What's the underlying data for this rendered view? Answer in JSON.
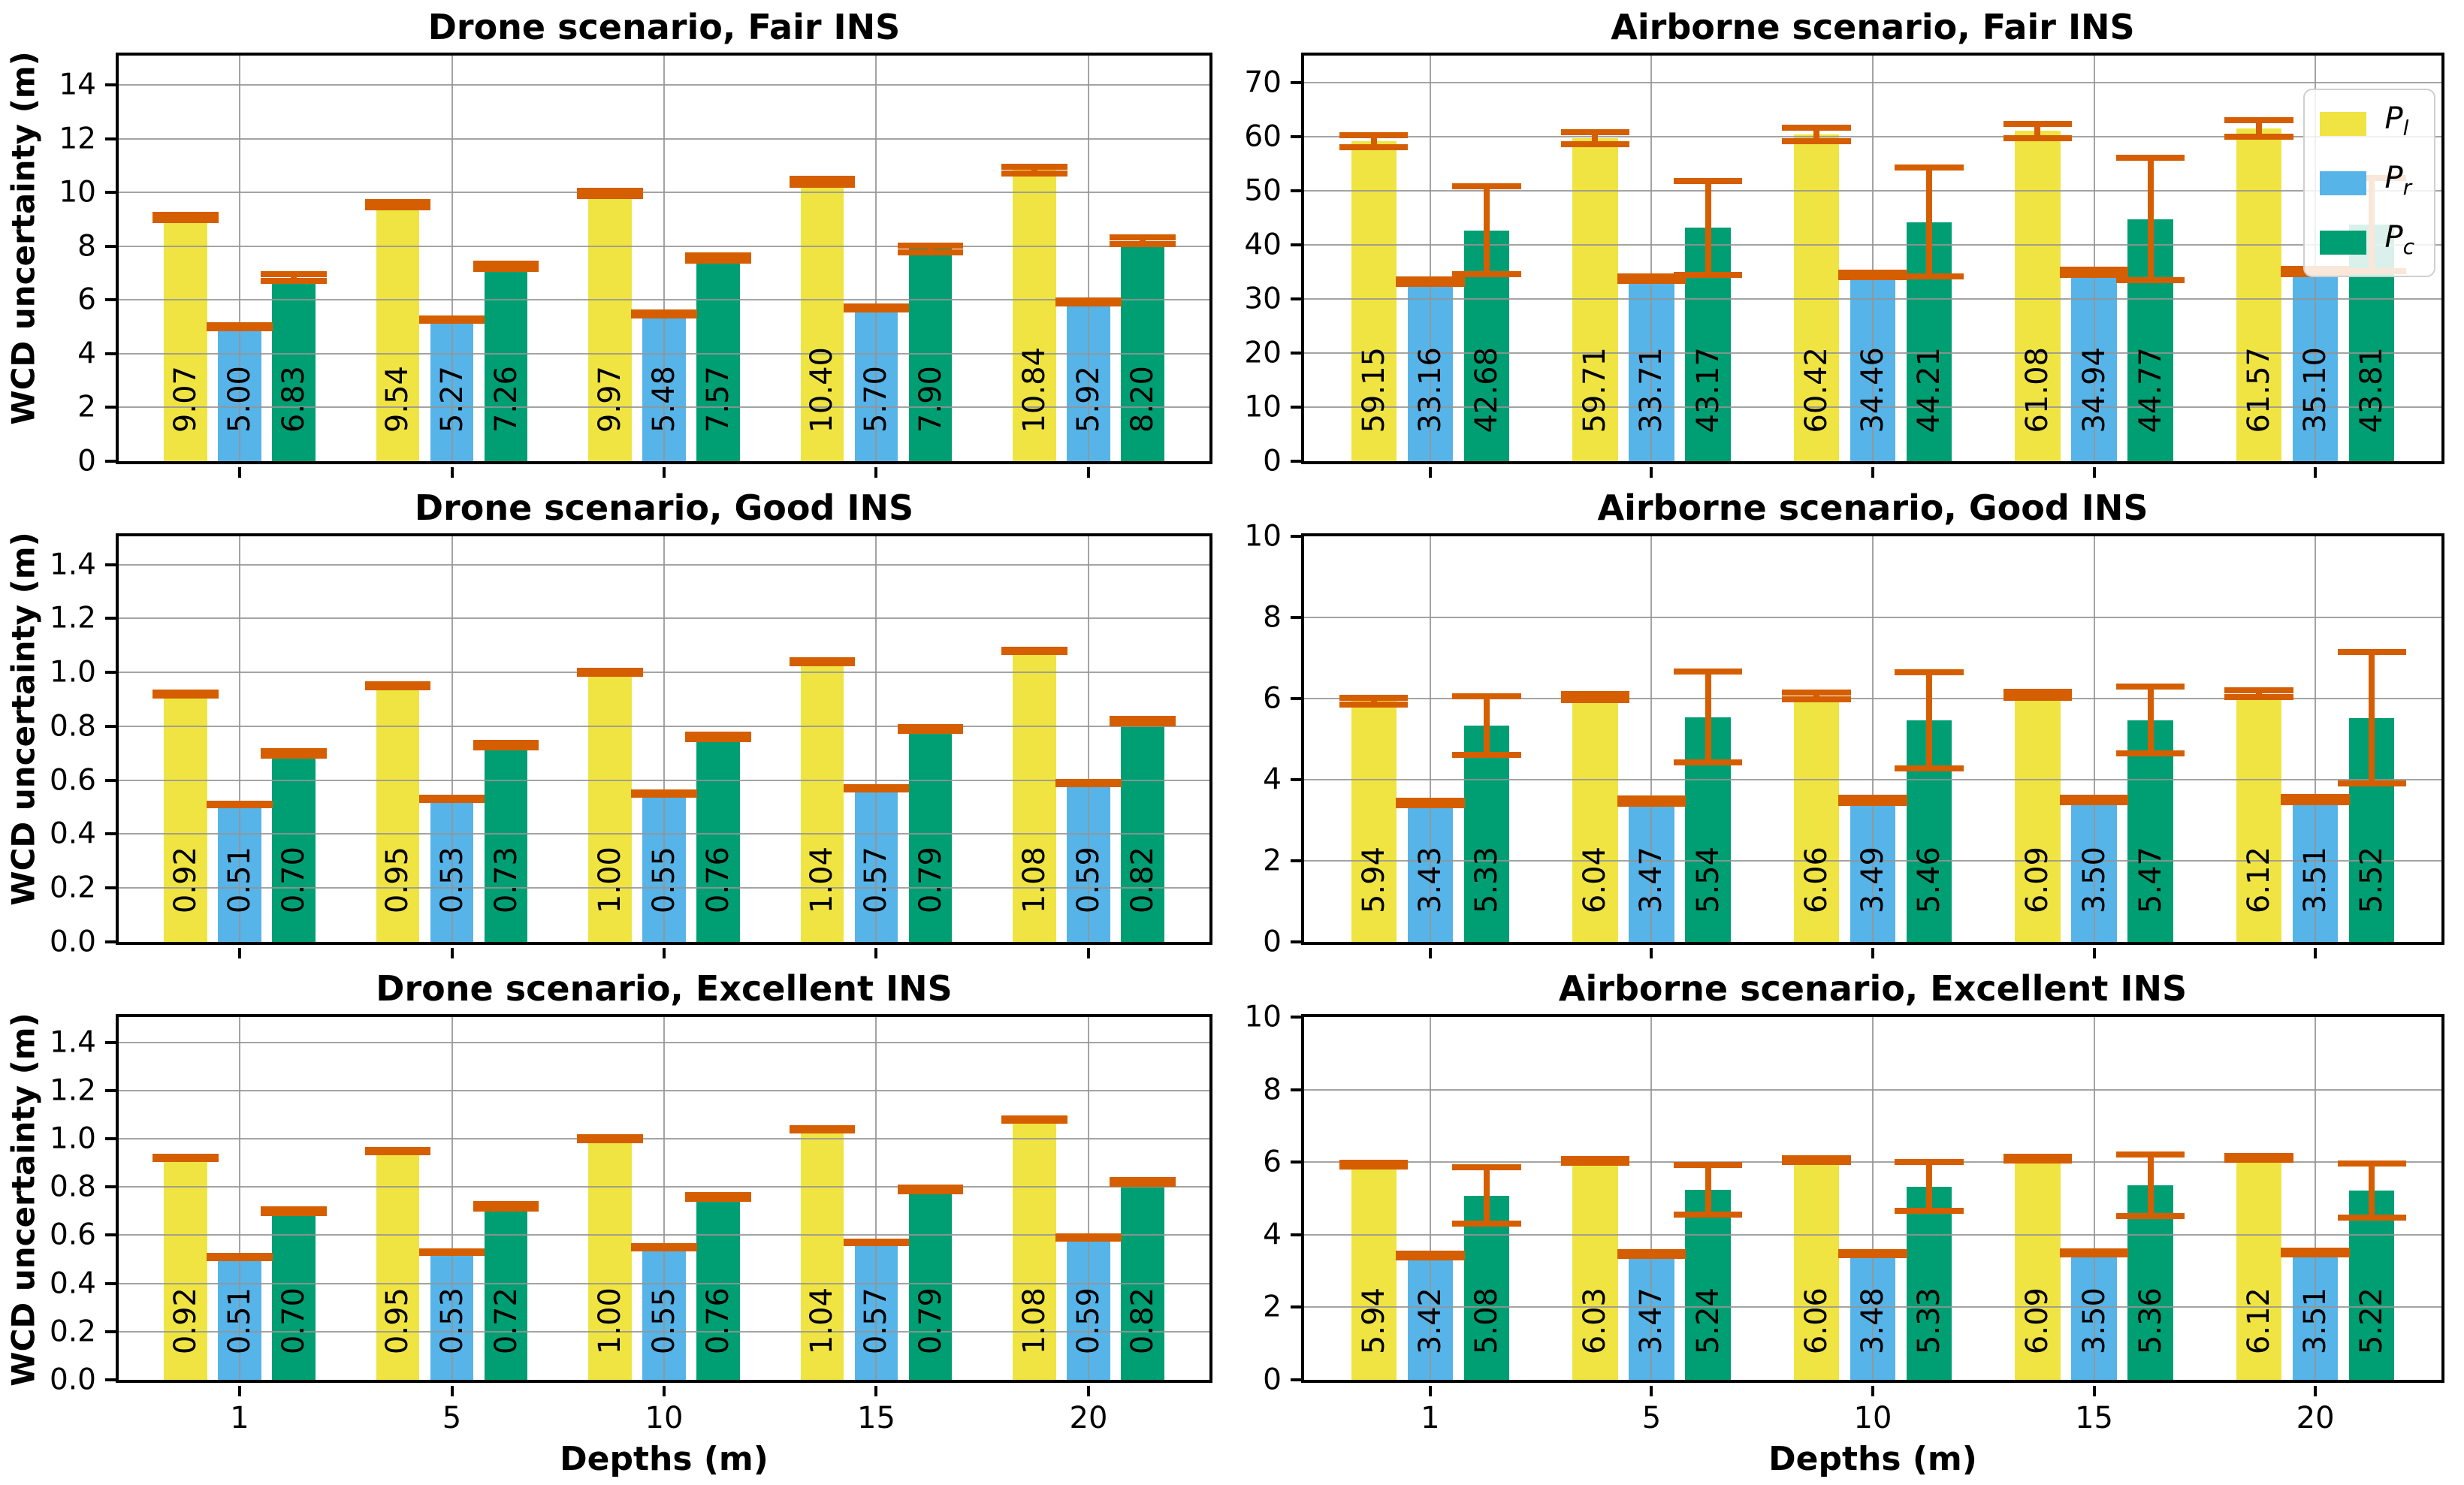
{
  "figure": {
    "ylabel": "WCD uncertainty (m)",
    "xlabel": "Depths (m)",
    "colors": {
      "P_l": "#F0E442",
      "P_r": "#56B4E9",
      "P_c": "#009E73",
      "error_bar": "#D55E00",
      "grid": "#949494"
    },
    "legend": [
      {
        "base": "P",
        "sub": "l",
        "color": "#F0E442"
      },
      {
        "base": "P",
        "sub": "r",
        "color": "#56B4E9"
      },
      {
        "base": "P",
        "sub": "c",
        "color": "#009E73"
      }
    ]
  },
  "chart_data": [
    {
      "type": "bar",
      "title": "Drone scenario, Fair INS",
      "ylabel": "WCD uncertainty (m)",
      "xlabel": "",
      "categories": [
        "1",
        "5",
        "10",
        "15",
        "20"
      ],
      "ylim": [
        0,
        15.1
      ],
      "yticks": [
        0,
        2,
        4,
        6,
        8,
        10,
        12,
        14
      ],
      "ytick_labels": [
        "0",
        "2",
        "4",
        "6",
        "8",
        "10",
        "12",
        "14"
      ],
      "grid": true,
      "legend_position": "none",
      "series": [
        {
          "name": "P_l",
          "color": "#F0E442",
          "values": [
            9.07,
            9.54,
            9.97,
            10.4,
            10.84
          ],
          "errors": [
            0.1,
            0.1,
            0.11,
            0.12,
            0.12
          ]
        },
        {
          "name": "P_r",
          "color": "#56B4E9",
          "values": [
            5.0,
            5.27,
            5.48,
            5.7,
            5.92
          ],
          "errors": [
            0.05,
            0.05,
            0.05,
            0.06,
            0.06
          ]
        },
        {
          "name": "P_c",
          "color": "#009E73",
          "values": [
            6.83,
            7.26,
            7.57,
            7.9,
            8.2
          ],
          "errors": [
            0.12,
            0.1,
            0.1,
            0.12,
            0.12
          ]
        }
      ]
    },
    {
      "type": "bar",
      "title": "Airborne scenario, Fair INS",
      "ylabel": "",
      "xlabel": "",
      "categories": [
        "1",
        "5",
        "10",
        "15",
        "20"
      ],
      "ylim": [
        0,
        75
      ],
      "yticks": [
        0,
        10,
        20,
        30,
        40,
        50,
        60,
        70
      ],
      "ytick_labels": [
        "0",
        "10",
        "20",
        "30",
        "40",
        "50",
        "60",
        "70"
      ],
      "grid": true,
      "legend_position": "upper right",
      "series": [
        {
          "name": "P_l",
          "color": "#F0E442",
          "values": [
            59.15,
            59.71,
            60.42,
            61.08,
            61.57
          ],
          "errors": [
            1.15,
            1.1,
            1.3,
            1.3,
            1.5
          ]
        },
        {
          "name": "P_r",
          "color": "#56B4E9",
          "values": [
            33.16,
            33.71,
            34.46,
            34.94,
            35.1
          ],
          "errors": [
            0.4,
            0.4,
            0.45,
            0.45,
            0.45
          ]
        },
        {
          "name": "P_c",
          "color": "#009E73",
          "values": [
            42.68,
            43.17,
            44.21,
            44.77,
            43.81
          ],
          "errors": [
            8.1,
            8.7,
            10.1,
            11.3,
            8.6
          ]
        }
      ]
    },
    {
      "type": "bar",
      "title": "Drone scenario, Good INS",
      "ylabel": "WCD uncertainty (m)",
      "xlabel": "",
      "categories": [
        "1",
        "5",
        "10",
        "15",
        "20"
      ],
      "ylim": [
        0,
        1.505
      ],
      "yticks": [
        0,
        0.2,
        0.4,
        0.6,
        0.8,
        1.0,
        1.2,
        1.4
      ],
      "ytick_labels": [
        "0.0",
        "0.2",
        "0.4",
        "0.6",
        "0.8",
        "1.0",
        "1.2",
        "1.4"
      ],
      "grid": true,
      "legend_position": "none",
      "series": [
        {
          "name": "P_l",
          "color": "#F0E442",
          "values": [
            0.92,
            0.95,
            1.0,
            1.04,
            1.08
          ],
          "errors": [
            0.005,
            0.005,
            0.005,
            0.005,
            0.005
          ]
        },
        {
          "name": "P_r",
          "color": "#56B4E9",
          "values": [
            0.51,
            0.53,
            0.55,
            0.57,
            0.59
          ],
          "errors": [
            0.004,
            0.004,
            0.004,
            0.004,
            0.004
          ]
        },
        {
          "name": "P_c",
          "color": "#009E73",
          "values": [
            0.7,
            0.73,
            0.76,
            0.79,
            0.82
          ],
          "errors": [
            0.008,
            0.008,
            0.008,
            0.008,
            0.008
          ]
        }
      ]
    },
    {
      "type": "bar",
      "title": "Airborne scenario, Good INS",
      "ylabel": "",
      "xlabel": "",
      "categories": [
        "1",
        "5",
        "10",
        "15",
        "20"
      ],
      "ylim": [
        0,
        10
      ],
      "yticks": [
        0,
        2,
        4,
        6,
        8,
        10
      ],
      "ytick_labels": [
        "0",
        "2",
        "4",
        "6",
        "8",
        "10"
      ],
      "grid": true,
      "legend_position": "none",
      "series": [
        {
          "name": "P_l",
          "color": "#F0E442",
          "values": [
            5.94,
            6.04,
            6.06,
            6.09,
            6.12
          ],
          "errors": [
            0.08,
            0.08,
            0.08,
            0.08,
            0.08
          ]
        },
        {
          "name": "P_r",
          "color": "#56B4E9",
          "values": [
            3.43,
            3.47,
            3.49,
            3.5,
            3.51
          ],
          "errors": [
            0.06,
            0.06,
            0.06,
            0.06,
            0.06
          ]
        },
        {
          "name": "P_c",
          "color": "#009E73",
          "values": [
            5.33,
            5.54,
            5.46,
            5.47,
            5.52
          ],
          "errors": [
            0.72,
            1.12,
            1.18,
            0.83,
            1.62
          ]
        }
      ]
    },
    {
      "type": "bar",
      "title": "Drone scenario, Excellent INS",
      "ylabel": "WCD uncertainty (m)",
      "xlabel": "Depths (m)",
      "categories": [
        "1",
        "5",
        "10",
        "15",
        "20"
      ],
      "ylim": [
        0,
        1.505
      ],
      "yticks": [
        0,
        0.2,
        0.4,
        0.6,
        0.8,
        1.0,
        1.2,
        1.4
      ],
      "ytick_labels": [
        "0.0",
        "0.2",
        "0.4",
        "0.6",
        "0.8",
        "1.0",
        "1.2",
        "1.4"
      ],
      "grid": true,
      "legend_position": "none",
      "series": [
        {
          "name": "P_l",
          "color": "#F0E442",
          "values": [
            0.92,
            0.95,
            1.0,
            1.04,
            1.08
          ],
          "errors": [
            0.005,
            0.005,
            0.005,
            0.005,
            0.005
          ]
        },
        {
          "name": "P_r",
          "color": "#56B4E9",
          "values": [
            0.51,
            0.53,
            0.55,
            0.57,
            0.59
          ],
          "errors": [
            0.004,
            0.004,
            0.004,
            0.004,
            0.004
          ]
        },
        {
          "name": "P_c",
          "color": "#009E73",
          "values": [
            0.7,
            0.72,
            0.76,
            0.79,
            0.82
          ],
          "errors": [
            0.008,
            0.008,
            0.008,
            0.008,
            0.008
          ]
        }
      ]
    },
    {
      "type": "bar",
      "title": "Airborne scenario, Excellent INS",
      "ylabel": "",
      "xlabel": "Depths (m)",
      "categories": [
        "1",
        "5",
        "10",
        "15",
        "20"
      ],
      "ylim": [
        0,
        10
      ],
      "yticks": [
        0,
        2,
        4,
        6,
        8,
        10
      ],
      "ytick_labels": [
        "0",
        "2",
        "4",
        "6",
        "8",
        "10"
      ],
      "grid": true,
      "legend_position": "none",
      "series": [
        {
          "name": "P_l",
          "color": "#F0E442",
          "values": [
            5.94,
            6.03,
            6.06,
            6.09,
            6.12
          ],
          "errors": [
            0.05,
            0.05,
            0.05,
            0.05,
            0.05
          ]
        },
        {
          "name": "P_r",
          "color": "#56B4E9",
          "values": [
            3.42,
            3.47,
            3.48,
            3.5,
            3.51
          ],
          "errors": [
            0.05,
            0.05,
            0.05,
            0.05,
            0.05
          ]
        },
        {
          "name": "P_c",
          "color": "#009E73",
          "values": [
            5.08,
            5.24,
            5.33,
            5.36,
            5.22
          ],
          "errors": [
            0.78,
            0.69,
            0.67,
            0.85,
            0.74
          ]
        }
      ]
    }
  ]
}
